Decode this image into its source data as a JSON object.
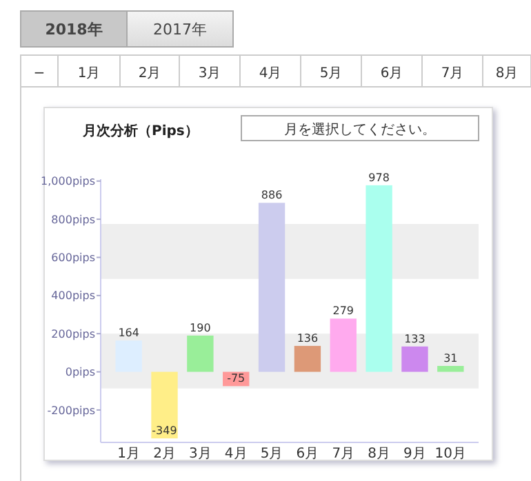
{
  "chart_data": {
    "type": "bar",
    "title": "月次分析（Pips）",
    "categories": [
      "1月",
      "2月",
      "3月",
      "4月",
      "5月",
      "6月",
      "7月",
      "8月",
      "9月",
      "10月"
    ],
    "values": [
      164,
      -349,
      190,
      -75,
      886,
      136,
      279,
      978,
      133,
      31
    ],
    "colors": [
      "#ddeeff",
      "#ffee88",
      "#99ee99",
      "#ff9999",
      "#ccccee",
      "#dd9977",
      "#ffaaee",
      "#aaffee",
      "#cc88ee",
      "#99ee99"
    ],
    "ylim": [
      -370,
      1010
    ],
    "yticks": [
      {
        "value": -200,
        "label": "-200pips"
      },
      {
        "value": 0,
        "label": "0pips"
      },
      {
        "value": 200,
        "label": "200pips"
      },
      {
        "value": 400,
        "label": "400pips"
      },
      {
        "value": 600,
        "label": "600pips"
      },
      {
        "value": 800,
        "label": "800pips"
      },
      {
        "value": 1000,
        "label": "1,000pips"
      }
    ],
    "bands": [
      {
        "axis": "y",
        "from": -87,
        "to": 200,
        "color": "#eeeeee"
      },
      {
        "axis": "y",
        "from": 487,
        "to": 775,
        "color": "#eeeeee"
      }
    ],
    "data_labels": true,
    "annotations": [
      "2018年",
      "2017年",
      "−",
      "1月",
      "2月",
      "3月",
      "4月",
      "5月",
      "6月",
      "7月",
      "8月",
      "月を選択してください。"
    ]
  }
}
